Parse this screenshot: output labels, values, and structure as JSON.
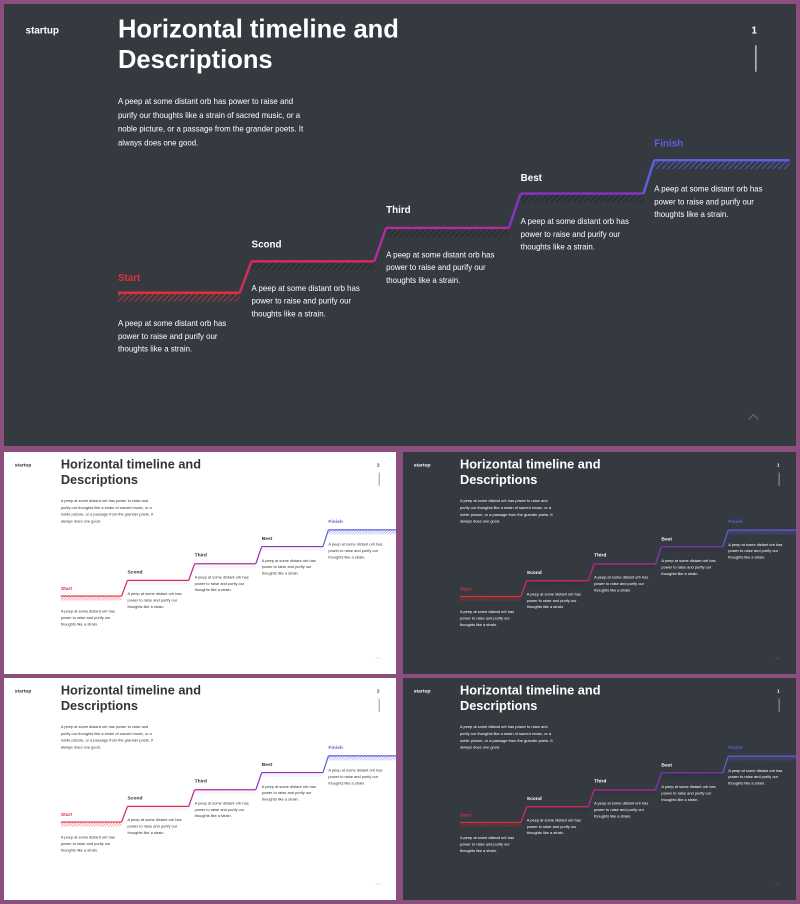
{
  "slides": [
    {
      "theme": "dark",
      "brand": "startup",
      "title": "Horizontal timeline and Descriptions",
      "page": "1",
      "intro": "A peep at some distant orb has power to raise and purify our thoughts like a strain of sacred music, or a noble picture, or a passage from the grander poets. It always does one good.",
      "stages": [
        {
          "label": "Start",
          "color": "#e0303a",
          "desc": "A peep at some distant orb has power to raise and purify our thoughts like a strain."
        },
        {
          "label": "Scond",
          "color": "#ffffff",
          "desc": "A peep at some distant orb has power to raise and purify our thoughts like a strain."
        },
        {
          "label": "Third",
          "color": "#ffffff",
          "desc": "A peep at some distant orb has power to raise and purify our thoughts like a strain."
        },
        {
          "label": "Best",
          "color": "#ffffff",
          "desc": "A peep at some distant orb has power to raise and purify our thoughts like a strain."
        },
        {
          "label": "Finish",
          "color": "#5f5fe0",
          "desc": "A peep at some distant orb has power to raise and purify our thoughts like a strain."
        }
      ]
    },
    {
      "theme": "light",
      "brand": "startup",
      "title": "Horizontal timeline and Descriptions",
      "page": "2",
      "intro": "A peep at some distant orb has power to raise and purify our thoughts like a strain of sacred music, or a noble picture, or a passage from the grander poets. It always does one good.",
      "stages": [
        {
          "label": "Start",
          "color": "#e0303a",
          "desc": "A peep at some distant orb has power to raise and purify our thoughts like a strain."
        },
        {
          "label": "Scond",
          "color": "#333333",
          "desc": "A peep at some distant orb has power to raise and purify our thoughts like a strain."
        },
        {
          "label": "Third",
          "color": "#333333",
          "desc": "A peep at some distant orb has power to raise and purify our thoughts like a strain."
        },
        {
          "label": "Best",
          "color": "#333333",
          "desc": "A peep at some distant orb has power to raise and purify our thoughts like a strain."
        },
        {
          "label": "Finish",
          "color": "#5f5fe0",
          "desc": "A peep at some distant orb has power to raise and purify our thoughts like a strain."
        }
      ]
    },
    {
      "theme": "dark",
      "brand": "startup",
      "title": "Horizontal timeline and Descriptions",
      "page": "1",
      "intro": "A peep at some distant orb has power to raise and purify our thoughts like a strain of sacred music, or a noble picture, or a passage from the grander poets. It always does one good.",
      "stages": [
        {
          "label": "Start",
          "color": "#e0303a",
          "desc": "A peep at some distant orb has power to raise and purify our thoughts like a strain."
        },
        {
          "label": "Scond",
          "color": "#ffffff",
          "desc": "A peep at some distant orb has power to raise and purify our thoughts like a strain."
        },
        {
          "label": "Third",
          "color": "#ffffff",
          "desc": "A peep at some distant orb has power to raise and purify our thoughts like a strain."
        },
        {
          "label": "Best",
          "color": "#ffffff",
          "desc": "A peep at some distant orb has power to raise and purify our thoughts like a strain."
        },
        {
          "label": "Finish",
          "color": "#5f5fe0",
          "desc": "A peep at some distant orb has power to raise and purify our thoughts like a strain."
        }
      ]
    },
    {
      "theme": "light",
      "brand": "startup",
      "title": "Horizontal timeline and Descriptions",
      "page": "2",
      "intro": "A peep at some distant orb has power to raise and purify our thoughts like a strain of sacred music, or a noble picture, or a passage from the grander poets. It always does one good.",
      "stages": [
        {
          "label": "Start",
          "color": "#e0303a",
          "desc": "A peep at some distant orb has power to raise and purify our thoughts like a strain."
        },
        {
          "label": "Scond",
          "color": "#333333",
          "desc": "A peep at some distant orb has power to raise and purify our thoughts like a strain."
        },
        {
          "label": "Third",
          "color": "#333333",
          "desc": "A peep at some distant orb has power to raise and purify our thoughts like a strain."
        },
        {
          "label": "Best",
          "color": "#333333",
          "desc": "A peep at some distant orb has power to raise and purify our thoughts like a strain."
        },
        {
          "label": "Finish",
          "color": "#5f5fe0",
          "desc": "A peep at some distant orb has power to raise and purify our thoughts like a strain."
        }
      ]
    },
    {
      "theme": "dark",
      "brand": "startup",
      "title": "Horizontal timeline and Descriptions",
      "page": "1",
      "intro": "A peep at some distant orb has power to raise and purify our thoughts like a strain of sacred music, or a noble picture, or a passage from the grander poets. It always does one good.",
      "stages": [
        {
          "label": "Start",
          "color": "#e0303a",
          "desc": "A peep at some distant orb has power to raise and purify our thoughts like a strain."
        },
        {
          "label": "Scond",
          "color": "#ffffff",
          "desc": "A peep at some distant orb has power to raise and purify our thoughts like a strain."
        },
        {
          "label": "Third",
          "color": "#ffffff",
          "desc": "A peep at some distant orb has power to raise and purify our thoughts like a strain."
        },
        {
          "label": "Best",
          "color": "#ffffff",
          "desc": "A peep at some distant orb has power to raise and purify our thoughts like a strain."
        },
        {
          "label": "Finish",
          "color": "#5f5fe0",
          "desc": "A peep at some distant orb has power to raise and purify our thoughts like a strain."
        }
      ]
    }
  ],
  "gradient": {
    "start": "#e0303a",
    "mid": "#c0208a",
    "end": "#5f5fe0"
  }
}
